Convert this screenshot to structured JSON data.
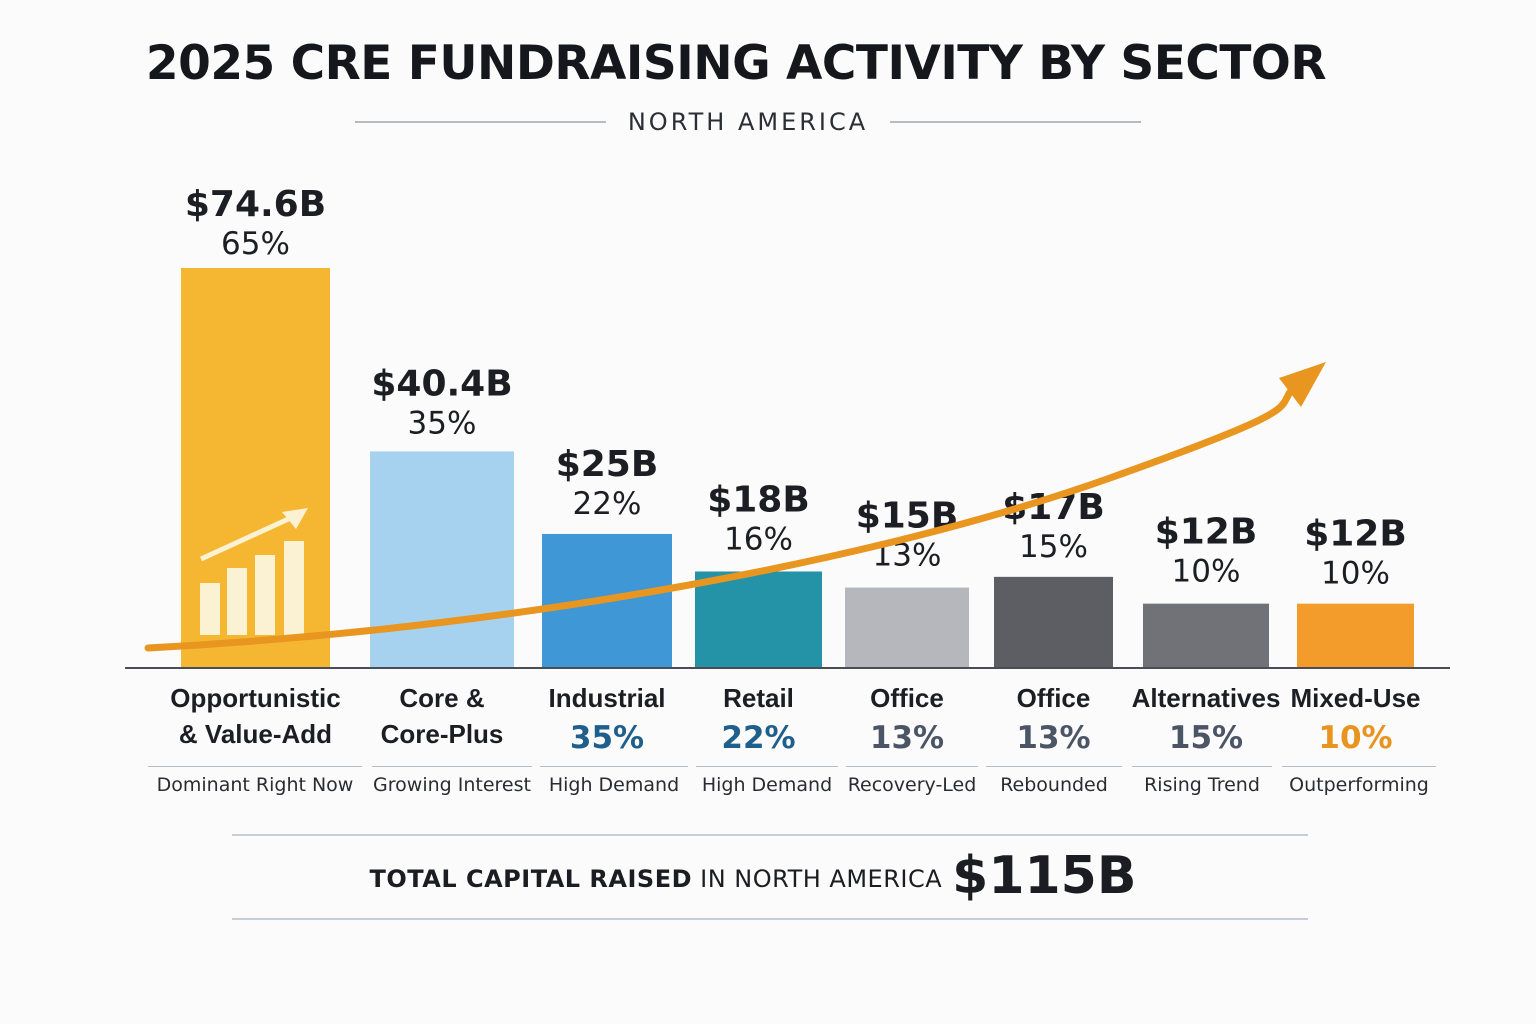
{
  "title": "2025 CRE FUNDRAISING ACTIVITY BY SECTOR",
  "subtitle": "NORTH AMERICA",
  "chart_data": {
    "type": "bar",
    "title": "2025 CRE FUNDRAISING ACTIVITY BY SECTOR",
    "subtitle": "NORTH AMERICA",
    "unit": "USD billions",
    "ylim": [
      0,
      80
    ],
    "categories": [
      "Opportunistic & Value-Add",
      "Core & Core-Plus",
      "Industrial",
      "Retail",
      "Office",
      "Office",
      "Alternatives",
      "Mixed-Use"
    ],
    "category_lines": [
      [
        "Opportunistic",
        "& Value-Add"
      ],
      [
        "Core &",
        "Core-Plus"
      ],
      [
        "Industrial"
      ],
      [
        "Retail"
      ],
      [
        "Office"
      ],
      [
        "Office"
      ],
      [
        "Alternatives"
      ],
      [
        "Mixed-Use"
      ]
    ],
    "values": [
      74.6,
      40.4,
      25,
      18,
      15,
      17,
      12,
      12
    ],
    "value_labels": [
      "$74.6B",
      "$40.4B",
      "$25B",
      "$18B",
      "$15B",
      "$17B",
      "$12B",
      "$12B"
    ],
    "pct_labels": [
      "65%",
      "35%",
      "22%",
      "16%",
      "13%",
      "15%",
      "10%",
      "10%"
    ],
    "sub_pct_labels": [
      "",
      "",
      "35%",
      "22%",
      "13%",
      "13%",
      "15%",
      "10%"
    ],
    "notes": [
      "Dominant Right Now",
      "Growing Interest",
      "High Demand",
      "High Demand",
      "Recovery-Led",
      "Rebounded",
      "Rising Trend",
      "Outperforming"
    ],
    "colors": [
      "#f5b731",
      "#a6d2f0",
      "#3f97d5",
      "#2493a8",
      "#b5b7bc",
      "#5c5e63",
      "#707278",
      "#f39c2b"
    ],
    "sub_pct_colors": [
      "",
      "",
      "#1f5f8b",
      "#1f5f8b",
      "#4c5566",
      "#4c5566",
      "#4c5566",
      "#e8941f"
    ],
    "trend_arrow": {
      "color": "#e8961f",
      "direction": "upward"
    }
  },
  "total": {
    "bold_label": "TOTAL CAPITAL RAISED",
    "label": " IN NORTH AMERICA",
    "value": "$115B"
  }
}
